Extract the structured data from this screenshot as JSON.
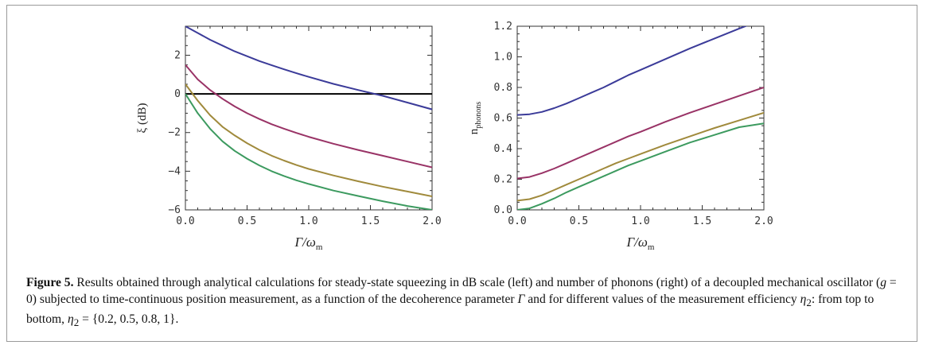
{
  "chart_data": [
    {
      "type": "line",
      "panel": "left",
      "xlabel": "Γ/ω",
      "xlabel_sub": "m",
      "ylabel": "ξ (dB)",
      "xlim": [
        0,
        2
      ],
      "ylim": [
        -6,
        3.5
      ],
      "xticks": [
        0,
        0.5,
        1,
        1.5,
        2
      ],
      "xtick_labels": [
        "0.0",
        "0.5",
        "1.0",
        "1.5",
        "2.0"
      ],
      "yticks": [
        -6,
        -4,
        -2,
        0,
        2
      ],
      "ytick_labels": [
        "−6",
        "−4",
        "−2",
        "0",
        "2"
      ],
      "reference_line": 0,
      "x": [
        0,
        0.1,
        0.2,
        0.3,
        0.4,
        0.5,
        0.6,
        0.7,
        0.8,
        0.9,
        1.0,
        1.2,
        1.4,
        1.6,
        1.8,
        2.0
      ],
      "series": [
        {
          "values": [
            3.5,
            3.15,
            2.8,
            2.5,
            2.2,
            1.95,
            1.7,
            1.48,
            1.27,
            1.07,
            0.88,
            0.52,
            0.2,
            -0.1,
            -0.45,
            -0.8
          ],
          "color": "#3b3b99"
        },
        {
          "values": [
            1.5,
            0.75,
            0.2,
            -0.25,
            -0.65,
            -1.0,
            -1.3,
            -1.57,
            -1.8,
            -2.02,
            -2.22,
            -2.58,
            -2.9,
            -3.2,
            -3.5,
            -3.8
          ],
          "color": "#993366"
        },
        {
          "values": [
            0.5,
            -0.35,
            -1.1,
            -1.7,
            -2.15,
            -2.55,
            -2.9,
            -3.2,
            -3.45,
            -3.68,
            -3.88,
            -4.22,
            -4.52,
            -4.8,
            -5.05,
            -5.3
          ],
          "color": "#a08a3c"
        },
        {
          "values": [
            0.0,
            -1.0,
            -1.8,
            -2.45,
            -2.95,
            -3.35,
            -3.7,
            -4.0,
            -4.25,
            -4.47,
            -4.66,
            -5.0,
            -5.28,
            -5.55,
            -5.8,
            -6.0
          ],
          "color": "#3c9a5f"
        }
      ]
    },
    {
      "type": "line",
      "panel": "right",
      "xlabel": "Γ/ω",
      "xlabel_sub": "m",
      "ylabel": "n",
      "ylabel_sub": "phonons",
      "xlim": [
        0,
        2
      ],
      "ylim": [
        0,
        1.2
      ],
      "xticks": [
        0,
        0.5,
        1,
        1.5,
        2
      ],
      "xtick_labels": [
        "0.0",
        "0.5",
        "1.0",
        "1.5",
        "2.0"
      ],
      "yticks": [
        0,
        0.2,
        0.4,
        0.6,
        0.8,
        1.0,
        1.2
      ],
      "ytick_labels": [
        "0.0",
        "0.2",
        "0.4",
        "0.6",
        "0.8",
        "1.0",
        "1.2"
      ],
      "x": [
        0,
        0.1,
        0.2,
        0.3,
        0.4,
        0.5,
        0.6,
        0.7,
        0.8,
        0.9,
        1.0,
        1.2,
        1.4,
        1.6,
        1.8,
        2.0
      ],
      "series": [
        {
          "values": [
            0.62,
            0.625,
            0.64,
            0.665,
            0.695,
            0.73,
            0.765,
            0.8,
            0.84,
            0.88,
            0.915,
            0.985,
            1.055,
            1.12,
            1.185,
            1.245
          ],
          "color": "#3b3b99"
        },
        {
          "values": [
            0.205,
            0.215,
            0.24,
            0.27,
            0.305,
            0.34,
            0.375,
            0.41,
            0.445,
            0.48,
            0.51,
            0.575,
            0.635,
            0.69,
            0.745,
            0.8
          ],
          "color": "#993366"
        },
        {
          "values": [
            0.06,
            0.07,
            0.095,
            0.13,
            0.165,
            0.2,
            0.235,
            0.27,
            0.305,
            0.335,
            0.365,
            0.425,
            0.48,
            0.535,
            0.585,
            0.635
          ],
          "color": "#a08a3c"
        },
        {
          "values": [
            0.0,
            0.01,
            0.04,
            0.075,
            0.115,
            0.15,
            0.185,
            0.22,
            0.255,
            0.29,
            0.32,
            0.38,
            0.44,
            0.49,
            0.54,
            0.565
          ],
          "color": "#3c9a5f"
        }
      ]
    }
  ],
  "caption": {
    "label": "Figure 5.",
    "text_1": " Results obtained through analytical calculations for steady-state squeezing in dB scale (left) and number of phonons (right) of a decoupled mechanical oscillator (",
    "g_var": "g",
    "text_2": " = 0) subjected to time-continuous position measurement, as a function of the decoherence parameter ",
    "gamma_var": "Γ",
    "text_3": " and for different values of the measurement efficiency ",
    "eta": "η",
    "eta_sub": "2",
    "text_4": ": from top to bottom, ",
    "eta2": "η",
    "eta2_sub": "2",
    "text_5": " = {0.2, 0.5, 0.8, 1}."
  }
}
